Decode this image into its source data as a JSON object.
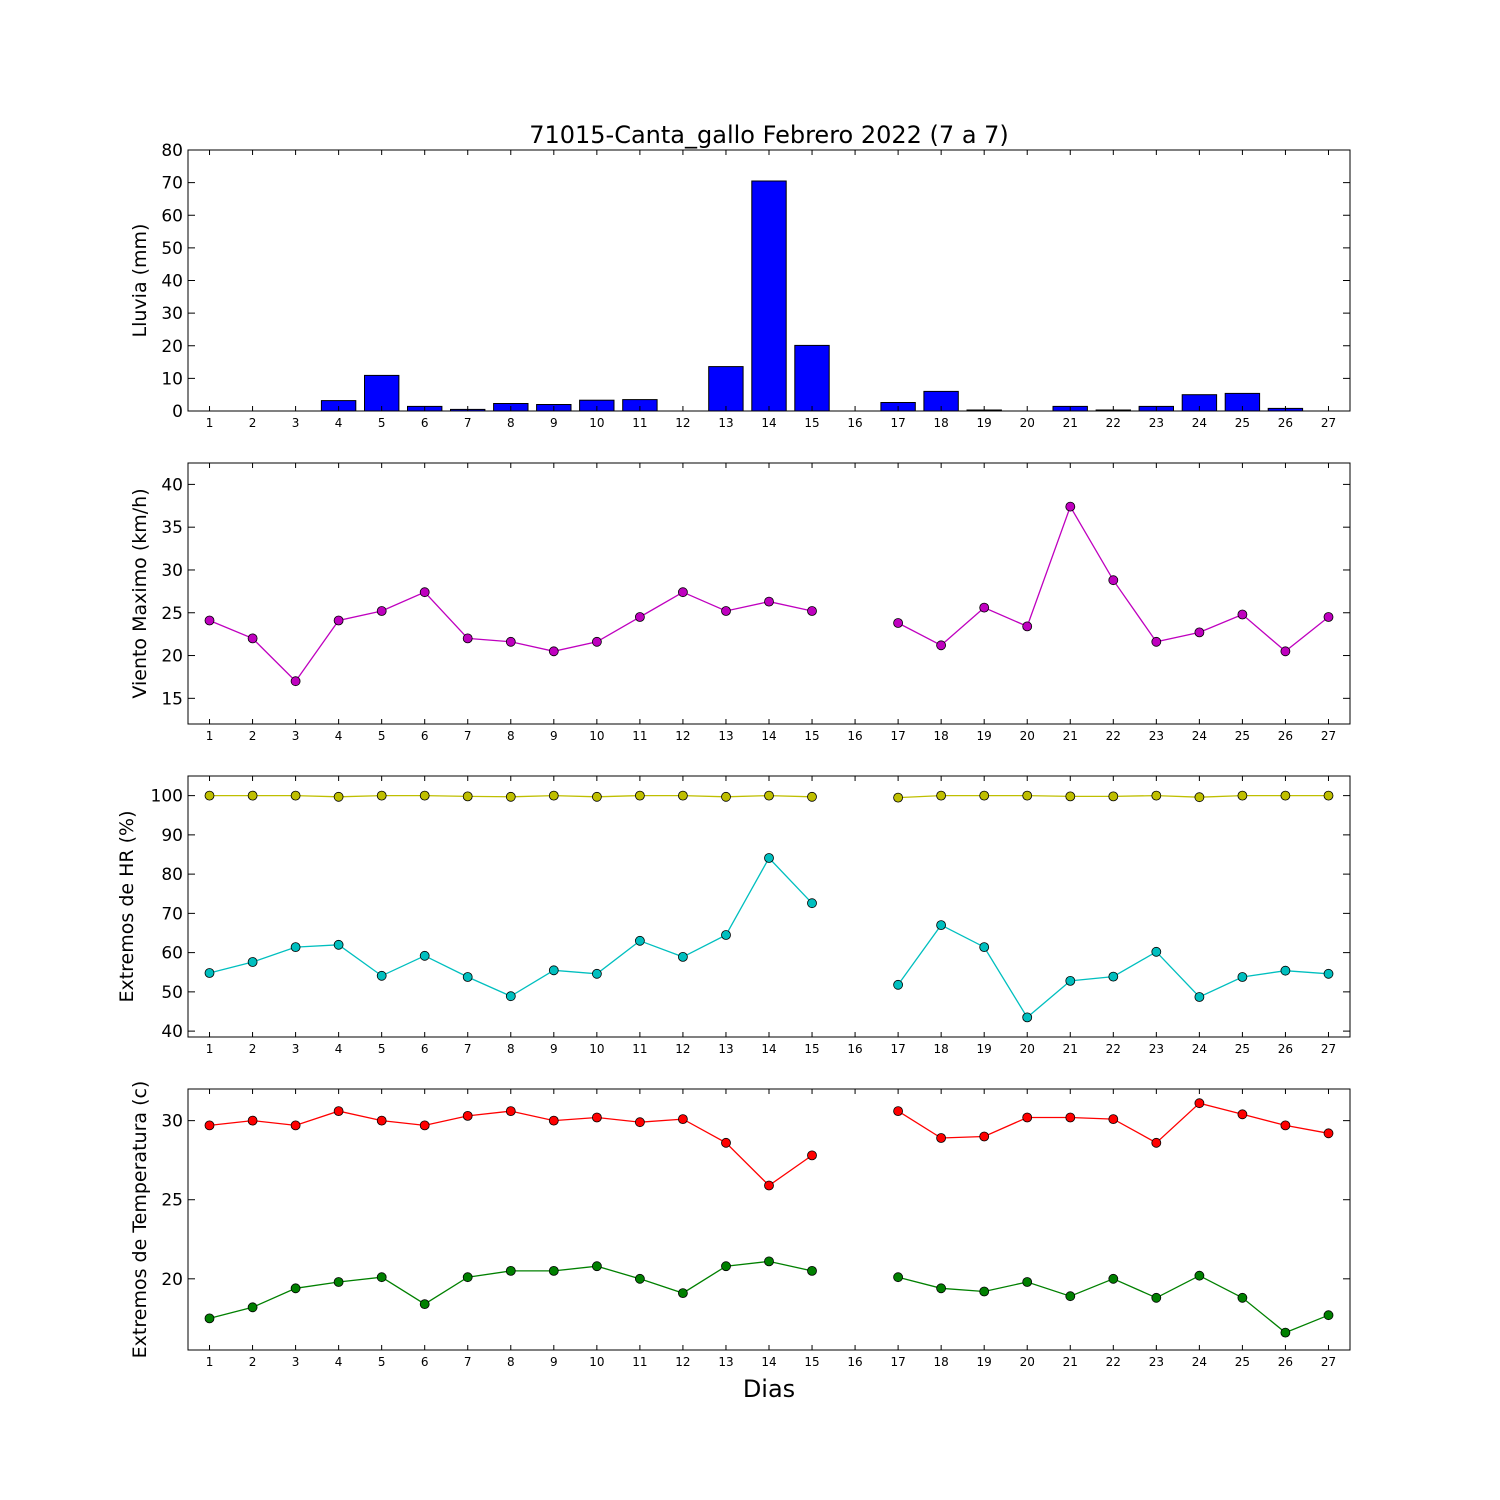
{
  "title": "71015-Canta_gallo Febrero 2022  (7 a 7)",
  "xlabel": "Dias",
  "colors": {
    "rain": "#0000ff",
    "wind": "#bf00bf",
    "hr_max": "#bfbf00",
    "hr_min": "#00bfbf",
    "temp_max": "#ff0000",
    "temp_min": "#008000"
  },
  "chart_data": [
    {
      "type": "bar",
      "ylabel": "Lluvia (mm)",
      "ylim": [
        0,
        80
      ],
      "yticks": [
        0,
        10,
        20,
        30,
        40,
        50,
        60,
        70,
        80
      ],
      "x": [
        1,
        2,
        3,
        4,
        5,
        6,
        7,
        8,
        9,
        10,
        11,
        12,
        13,
        14,
        15,
        16,
        17,
        18,
        19,
        20,
        21,
        22,
        23,
        24,
        25,
        26,
        27
      ],
      "series": [
        {
          "values": [
            0,
            0,
            0,
            3.2,
            10.9,
            1.4,
            0.5,
            2.3,
            2.0,
            3.3,
            3.5,
            0,
            13.6,
            70.5,
            20.1,
            0,
            2.6,
            6.0,
            0.3,
            0,
            1.4,
            0.3,
            1.4,
            5.0,
            5.4,
            0.8,
            0
          ]
        }
      ]
    },
    {
      "type": "line",
      "ylabel": "Viento Maximo (km/h)",
      "ylim": [
        12,
        42.5
      ],
      "yticks": [
        15,
        20,
        25,
        30,
        35,
        40
      ],
      "x": [
        1,
        2,
        3,
        4,
        5,
        6,
        7,
        8,
        9,
        10,
        11,
        12,
        13,
        14,
        15,
        16,
        17,
        18,
        19,
        20,
        21,
        22,
        23,
        24,
        25,
        26,
        27
      ],
      "series": [
        {
          "values": [
            24.1,
            22.0,
            17.0,
            24.1,
            25.2,
            27.4,
            22.0,
            21.6,
            20.5,
            21.6,
            24.5,
            27.4,
            25.2,
            26.3,
            25.2,
            null,
            23.8,
            21.2,
            25.6,
            23.4,
            37.4,
            28.8,
            21.6,
            22.7,
            24.8,
            20.5,
            24.5
          ]
        }
      ]
    },
    {
      "type": "line",
      "ylabel": "Extremos de HR (%)",
      "ylim": [
        38.5,
        105
      ],
      "yticks": [
        40,
        50,
        60,
        70,
        80,
        90,
        100
      ],
      "x": [
        1,
        2,
        3,
        4,
        5,
        6,
        7,
        8,
        9,
        10,
        11,
        12,
        13,
        14,
        15,
        16,
        17,
        18,
        19,
        20,
        21,
        22,
        23,
        24,
        25,
        26,
        27
      ],
      "series": [
        {
          "values": [
            100,
            100,
            100,
            99.7,
            100,
            100,
            99.8,
            99.7,
            100,
            99.7,
            100,
            100,
            99.7,
            100,
            99.7,
            null,
            99.5,
            100,
            100,
            100,
            99.8,
            99.8,
            100,
            99.6,
            100,
            100,
            100
          ]
        },
        {
          "values": [
            54.8,
            57.6,
            61.4,
            62.0,
            54.1,
            59.2,
            53.8,
            48.9,
            55.5,
            54.6,
            63.0,
            58.9,
            64.5,
            84.1,
            72.6,
            null,
            51.8,
            67.0,
            61.4,
            43.5,
            52.8,
            53.9,
            60.2,
            48.7,
            53.8,
            55.4,
            54.6
          ]
        }
      ]
    },
    {
      "type": "line",
      "ylabel": "Extremos de Temperatura (c)",
      "ylim": [
        15.5,
        32
      ],
      "yticks": [
        20,
        25,
        30
      ],
      "x": [
        1,
        2,
        3,
        4,
        5,
        6,
        7,
        8,
        9,
        10,
        11,
        12,
        13,
        14,
        15,
        16,
        17,
        18,
        19,
        20,
        21,
        22,
        23,
        24,
        25,
        26,
        27
      ],
      "series": [
        {
          "values": [
            29.7,
            30.0,
            29.7,
            30.6,
            30.0,
            29.7,
            30.3,
            30.6,
            30.0,
            30.2,
            29.9,
            30.1,
            28.6,
            25.9,
            27.8,
            null,
            30.6,
            28.9,
            29.0,
            30.2,
            30.2,
            30.1,
            28.6,
            31.1,
            30.4,
            29.7,
            29.2
          ]
        },
        {
          "values": [
            17.5,
            18.2,
            19.4,
            19.8,
            20.1,
            18.4,
            20.1,
            20.5,
            20.5,
            20.8,
            20.0,
            19.1,
            20.8,
            21.1,
            20.5,
            null,
            20.1,
            19.4,
            19.2,
            19.8,
            18.9,
            20.0,
            18.8,
            20.2,
            18.8,
            16.6,
            17.7
          ]
        }
      ]
    }
  ]
}
